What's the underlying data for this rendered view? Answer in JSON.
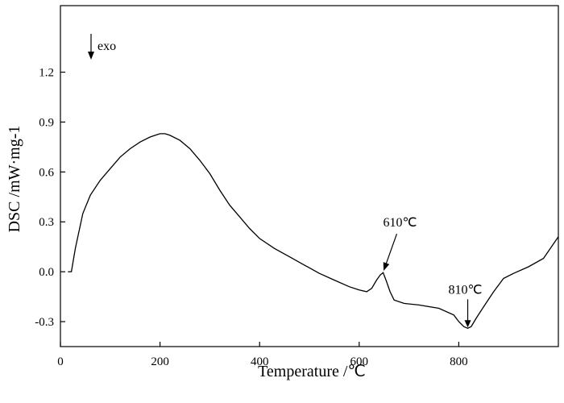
{
  "chart_data": {
    "type": "line",
    "xlabel": "Temperature /℃",
    "ylabel": "DSC /mW·mg-1",
    "xlim": [
      0,
      1000
    ],
    "ylim": [
      -0.45,
      1.6
    ],
    "xticks": [
      0,
      200,
      400,
      600,
      800
    ],
    "xtick_labels": [
      "0",
      "200",
      "400",
      "600",
      "800"
    ],
    "yticks": [
      -0.3,
      0.0,
      0.3,
      0.6,
      0.9,
      1.2
    ],
    "ytick_labels": [
      "-0.3",
      "0.0",
      "0.3",
      "0.6",
      "0.9",
      "1.2"
    ],
    "grid": false,
    "legend": "none",
    "line_color": "#000000",
    "series": [
      {
        "x": [
          15,
          22,
          30,
          45,
          60,
          80,
          100,
          120,
          140,
          160,
          180,
          195,
          200,
          210,
          220,
          240,
          260,
          280,
          300,
          320,
          340,
          360,
          380,
          400,
          430,
          460,
          490,
          520,
          550,
          580,
          600,
          615,
          625,
          635,
          642,
          648,
          655,
          662,
          670,
          690,
          720,
          760,
          790,
          800,
          810,
          818,
          825,
          835,
          850,
          870,
          890,
          910,
          940,
          970,
          1000
        ],
        "y": [
          0.0,
          0.0,
          0.14,
          0.35,
          0.46,
          0.55,
          0.62,
          0.69,
          0.74,
          0.78,
          0.81,
          0.825,
          0.83,
          0.83,
          0.82,
          0.79,
          0.74,
          0.67,
          0.59,
          0.49,
          0.4,
          0.33,
          0.26,
          0.2,
          0.14,
          0.09,
          0.04,
          -0.01,
          -0.05,
          -0.09,
          -0.11,
          -0.12,
          -0.1,
          -0.05,
          -0.02,
          -0.005,
          -0.06,
          -0.12,
          -0.17,
          -0.19,
          -0.2,
          -0.22,
          -0.26,
          -0.3,
          -0.33,
          -0.34,
          -0.33,
          -0.28,
          -0.21,
          -0.12,
          -0.04,
          -0.01,
          0.03,
          0.08,
          0.21
        ]
      }
    ],
    "annotations": [
      {
        "label": "exo"
      },
      {
        "label": "610℃",
        "x": 648,
        "y": -0.005
      },
      {
        "label": "810℃",
        "x": 818,
        "y": -0.34
      }
    ]
  }
}
